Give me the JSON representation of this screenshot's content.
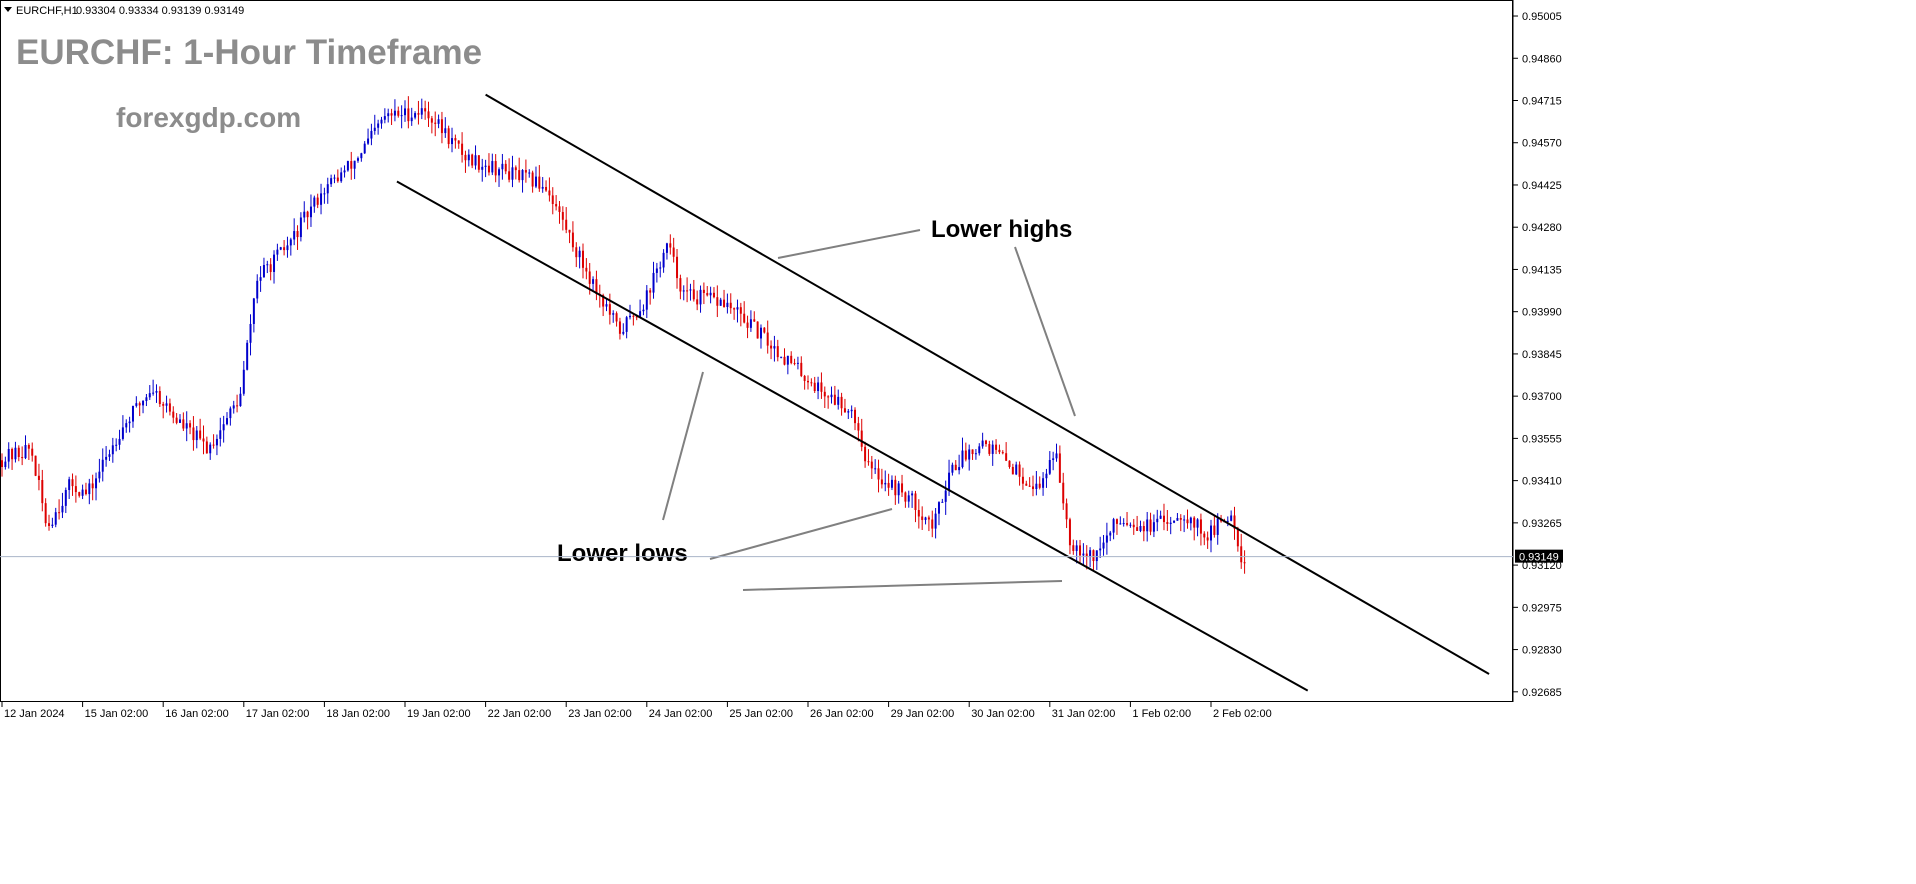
{
  "header": {
    "symbol": "EURCHF,H1",
    "ohlc": "0.93304 0.93334 0.93139 0.93149",
    "title": "EURCHF: 1-Hour Timeframe",
    "watermark": "forexgdp.com"
  },
  "annotations": {
    "lower_highs": "Lower highs",
    "lower_lows": "Lower lows"
  },
  "colors": {
    "bull": "#0000cc",
    "bear": "#dd0000",
    "line": "#000000",
    "title": "#8c8c8c",
    "price_line": "#aab4c8"
  },
  "chart_data": {
    "type": "candlestick",
    "title": "EURCHF: 1-Hour Timeframe",
    "y_ticks": [
      "0.95005",
      "0.94860",
      "0.94715",
      "0.94570",
      "0.94425",
      "0.94280",
      "0.94135",
      "0.93990",
      "0.93845",
      "0.93700",
      "0.93555",
      "0.93410",
      "0.93265",
      "0.93120",
      "0.92975",
      "0.92830",
      "0.92685"
    ],
    "ylim": [
      0.9265,
      0.9506
    ],
    "x_ticks": [
      "12 Jan 2024",
      "15 Jan 02:00",
      "16 Jan 02:00",
      "17 Jan 02:00",
      "18 Jan 02:00",
      "19 Jan 02:00",
      "22 Jan 02:00",
      "23 Jan 02:00",
      "24 Jan 02:00",
      "25 Jan 02:00",
      "26 Jan 02:00",
      "29 Jan 02:00",
      "30 Jan 02:00",
      "31 Jan 02:00",
      "1 Feb 02:00",
      "2 Feb 02:00"
    ],
    "current_price": "0.93149",
    "price_path": [
      {
        "d": 0.0,
        "p": 0.9348
      },
      {
        "d": 0.4,
        "p": 0.9352
      },
      {
        "d": 0.6,
        "p": 0.9325
      },
      {
        "d": 0.9,
        "p": 0.934
      },
      {
        "d": 1.1,
        "p": 0.9336
      },
      {
        "d": 1.5,
        "p": 0.9358
      },
      {
        "d": 1.9,
        "p": 0.9373
      },
      {
        "d": 2.2,
        "p": 0.9362
      },
      {
        "d": 2.6,
        "p": 0.9352
      },
      {
        "d": 3.0,
        "p": 0.937
      },
      {
        "d": 3.2,
        "p": 0.941
      },
      {
        "d": 3.6,
        "p": 0.9422
      },
      {
        "d": 4.0,
        "p": 0.944
      },
      {
        "d": 4.4,
        "p": 0.945
      },
      {
        "d": 4.8,
        "p": 0.9466
      },
      {
        "d": 5.3,
        "p": 0.9468
      },
      {
        "d": 5.8,
        "p": 0.9452
      },
      {
        "d": 6.2,
        "p": 0.9448
      },
      {
        "d": 6.8,
        "p": 0.9442
      },
      {
        "d": 7.2,
        "p": 0.9418
      },
      {
        "d": 7.7,
        "p": 0.9392
      },
      {
        "d": 8.0,
        "p": 0.9402
      },
      {
        "d": 8.3,
        "p": 0.9422
      },
      {
        "d": 8.5,
        "p": 0.9405
      },
      {
        "d": 9.0,
        "p": 0.9402
      },
      {
        "d": 9.3,
        "p": 0.9395
      },
      {
        "d": 9.8,
        "p": 0.9382
      },
      {
        "d": 10.2,
        "p": 0.9372
      },
      {
        "d": 10.6,
        "p": 0.9365
      },
      {
        "d": 10.8,
        "p": 0.9345
      },
      {
        "d": 11.3,
        "p": 0.9335
      },
      {
        "d": 11.6,
        "p": 0.9325
      },
      {
        "d": 11.8,
        "p": 0.9345
      },
      {
        "d": 12.2,
        "p": 0.9355
      },
      {
        "d": 12.6,
        "p": 0.9345
      },
      {
        "d": 12.9,
        "p": 0.9338
      },
      {
        "d": 13.1,
        "p": 0.9352
      },
      {
        "d": 13.3,
        "p": 0.932
      },
      {
        "d": 13.6,
        "p": 0.9315
      },
      {
        "d": 13.9,
        "p": 0.9328
      },
      {
        "d": 14.3,
        "p": 0.9325
      },
      {
        "d": 14.7,
        "p": 0.933
      },
      {
        "d": 15.0,
        "p": 0.9322
      },
      {
        "d": 15.3,
        "p": 0.933
      },
      {
        "d": 15.42,
        "p": 0.93149
      }
    ],
    "trendlines": [
      {
        "name": "channel-upper",
        "from": {
          "d": 6.0,
          "p": 0.94735
        },
        "to": {
          "d": 18.45,
          "p": 0.92746
        }
      },
      {
        "name": "channel-lower",
        "from": {
          "d": 4.9,
          "p": 0.94437
        },
        "to": {
          "d": 16.2,
          "p": 0.92689
        }
      }
    ]
  }
}
